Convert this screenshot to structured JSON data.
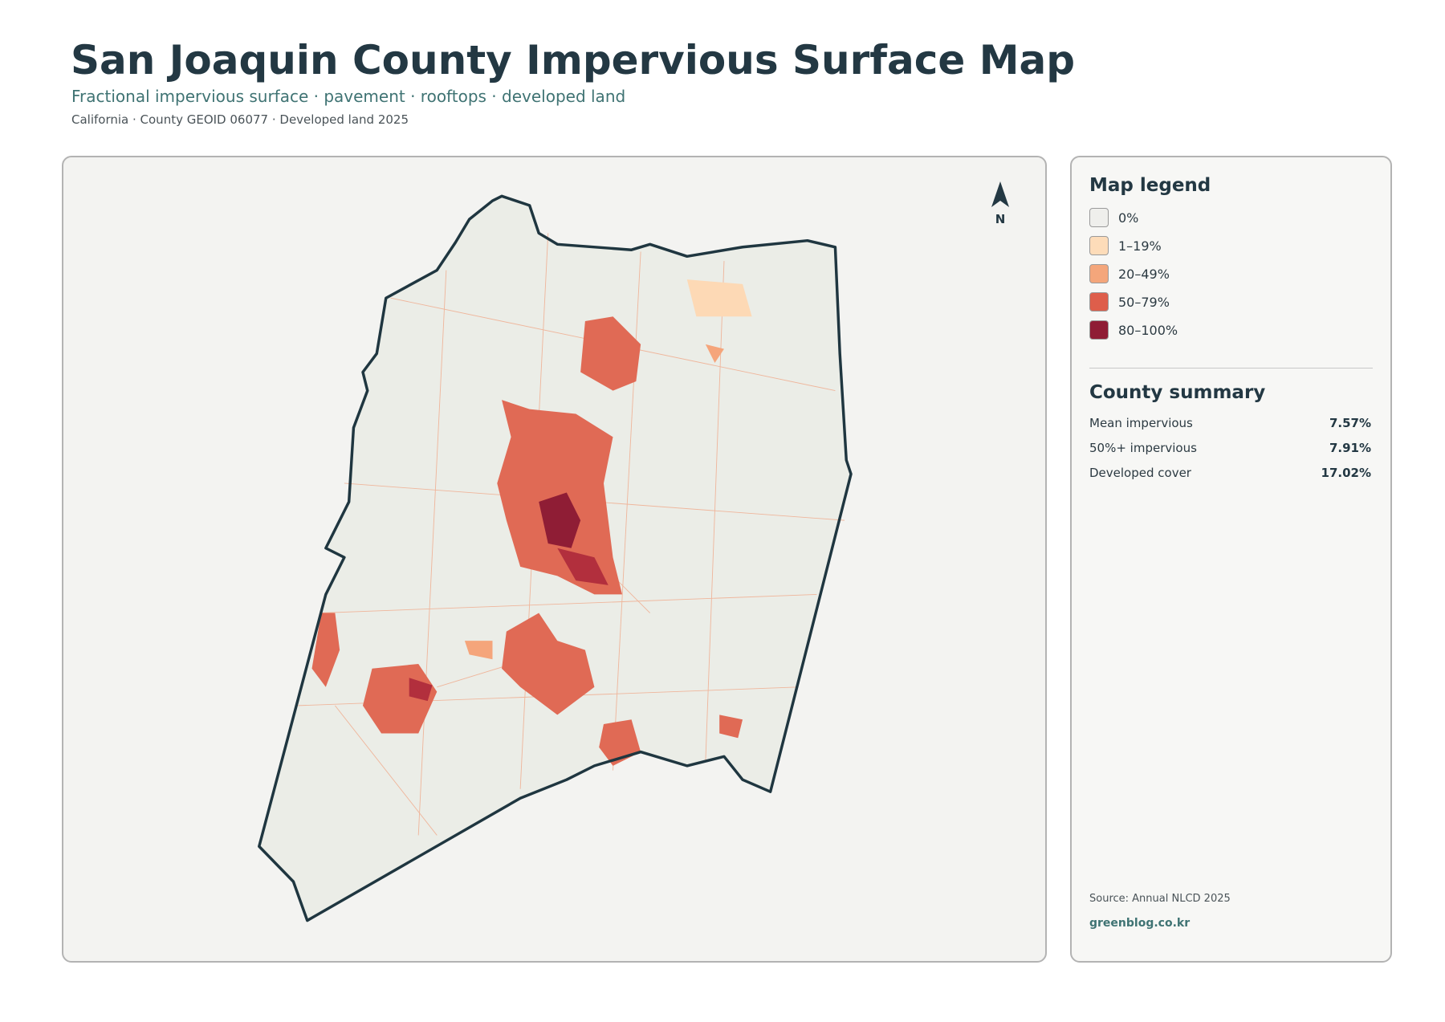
{
  "header": {
    "title": "San Joaquin County Impervious Surface Map",
    "subtitle": "Fractional impervious surface · pavement · rooftops · developed land",
    "meta": "California · County GEOID 06077 · Developed land 2025"
  },
  "map": {
    "north_label": "N"
  },
  "legend": {
    "title": "Map legend",
    "items": [
      {
        "label": "0%",
        "color": "#efefec"
      },
      {
        "label": "1–19%",
        "color": "#fddcb9"
      },
      {
        "label": "20–49%",
        "color": "#f4a67b"
      },
      {
        "label": "50–79%",
        "color": "#de5e4b"
      },
      {
        "label": "80–100%",
        "color": "#8f1d35"
      }
    ]
  },
  "summary": {
    "title": "County summary",
    "rows": [
      {
        "label": "Mean impervious",
        "value": "7.57%"
      },
      {
        "label": "50%+ impervious",
        "value": "7.91%"
      },
      {
        "label": "Developed cover",
        "value": "17.02%"
      }
    ]
  },
  "footer": {
    "source": "Source: Annual NLCD 2025",
    "credit": "greenblog.co.kr"
  }
}
